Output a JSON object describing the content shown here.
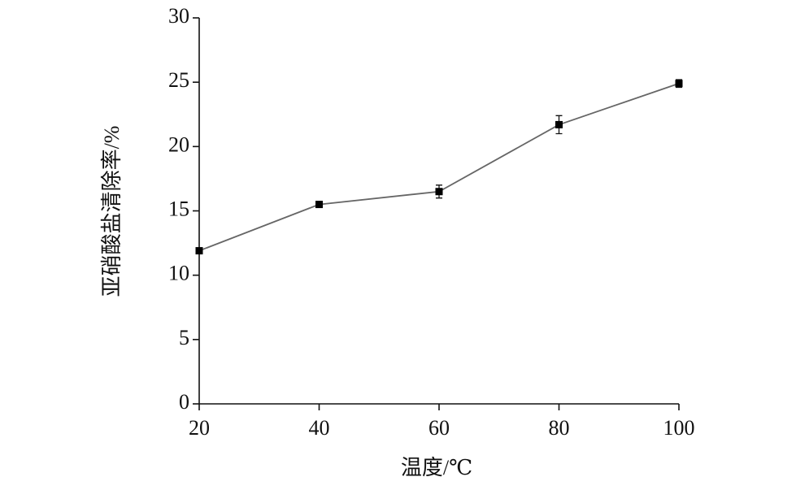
{
  "chart_data": {
    "type": "line",
    "x": [
      20,
      40,
      60,
      80,
      100
    ],
    "values": [
      11.9,
      15.5,
      16.5,
      21.7,
      24.9
    ],
    "errors": [
      0.2,
      0.2,
      0.5,
      0.7,
      0.3
    ],
    "color": "#666666",
    "marker_color": "#000000",
    "xlim": [
      20,
      100
    ],
    "xticks": [
      20,
      40,
      60,
      80,
      100
    ],
    "ylim": [
      0,
      30
    ],
    "yticks": [
      0,
      5,
      10,
      15,
      20,
      25,
      30
    ],
    "xlabel": "温度/℃",
    "ylabel": "亚硝酸盐清除率/%"
  }
}
